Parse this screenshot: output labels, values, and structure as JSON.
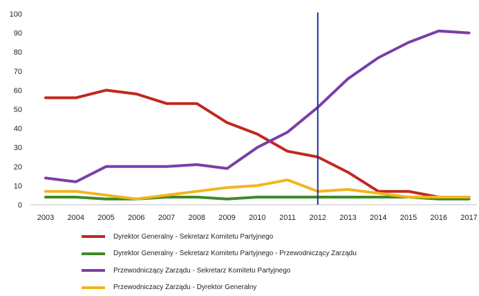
{
  "chart_data": {
    "type": "line",
    "title": "",
    "xlabel": "",
    "ylabel": "",
    "x": [
      "2003",
      "2004",
      "2005",
      "2006",
      "2007",
      "2008",
      "2009",
      "2010",
      "2011",
      "2012",
      "2013",
      "2014",
      "2015",
      "2016",
      "2017"
    ],
    "ylim": [
      0,
      100
    ],
    "yticks": [
      0,
      10,
      20,
      30,
      40,
      50,
      60,
      70,
      80,
      90,
      100
    ],
    "grid": false,
    "legend_position": "bottom",
    "marker_line_x": "2012",
    "marker_line_color": "#1f2f8f",
    "series": [
      {
        "name": "Dyrektor Generalny - Sekretarz Komitetu Partyjnego",
        "color": "#c0281e",
        "values": [
          56,
          56,
          60,
          58,
          53,
          53,
          43,
          37,
          28,
          25,
          17,
          7,
          7,
          4,
          4
        ]
      },
      {
        "name": "Dyrektor Generalny - Sekretarz Komitetu Partyjnego - Przewodniczący Zarządu",
        "color": "#3e8a2a",
        "values": [
          4,
          4,
          3,
          3,
          4,
          4,
          3,
          4,
          4,
          4,
          4,
          4,
          4,
          3,
          3
        ]
      },
      {
        "name": "Przewodniczący Zarządu - Sekretarz Komitetu Partyjnego",
        "color": "#7a3ea8",
        "values": [
          14,
          12,
          20,
          20,
          20,
          21,
          19,
          30,
          38,
          51,
          66,
          77,
          85,
          91,
          90
        ]
      },
      {
        "name": "Przewodniczacy Zarządu - Dyrektor Generalny",
        "color": "#f2b51c",
        "values": [
          7,
          7,
          5,
          3,
          5,
          7,
          9,
          10,
          13,
          7,
          8,
          6,
          4,
          4,
          4
        ]
      }
    ]
  }
}
